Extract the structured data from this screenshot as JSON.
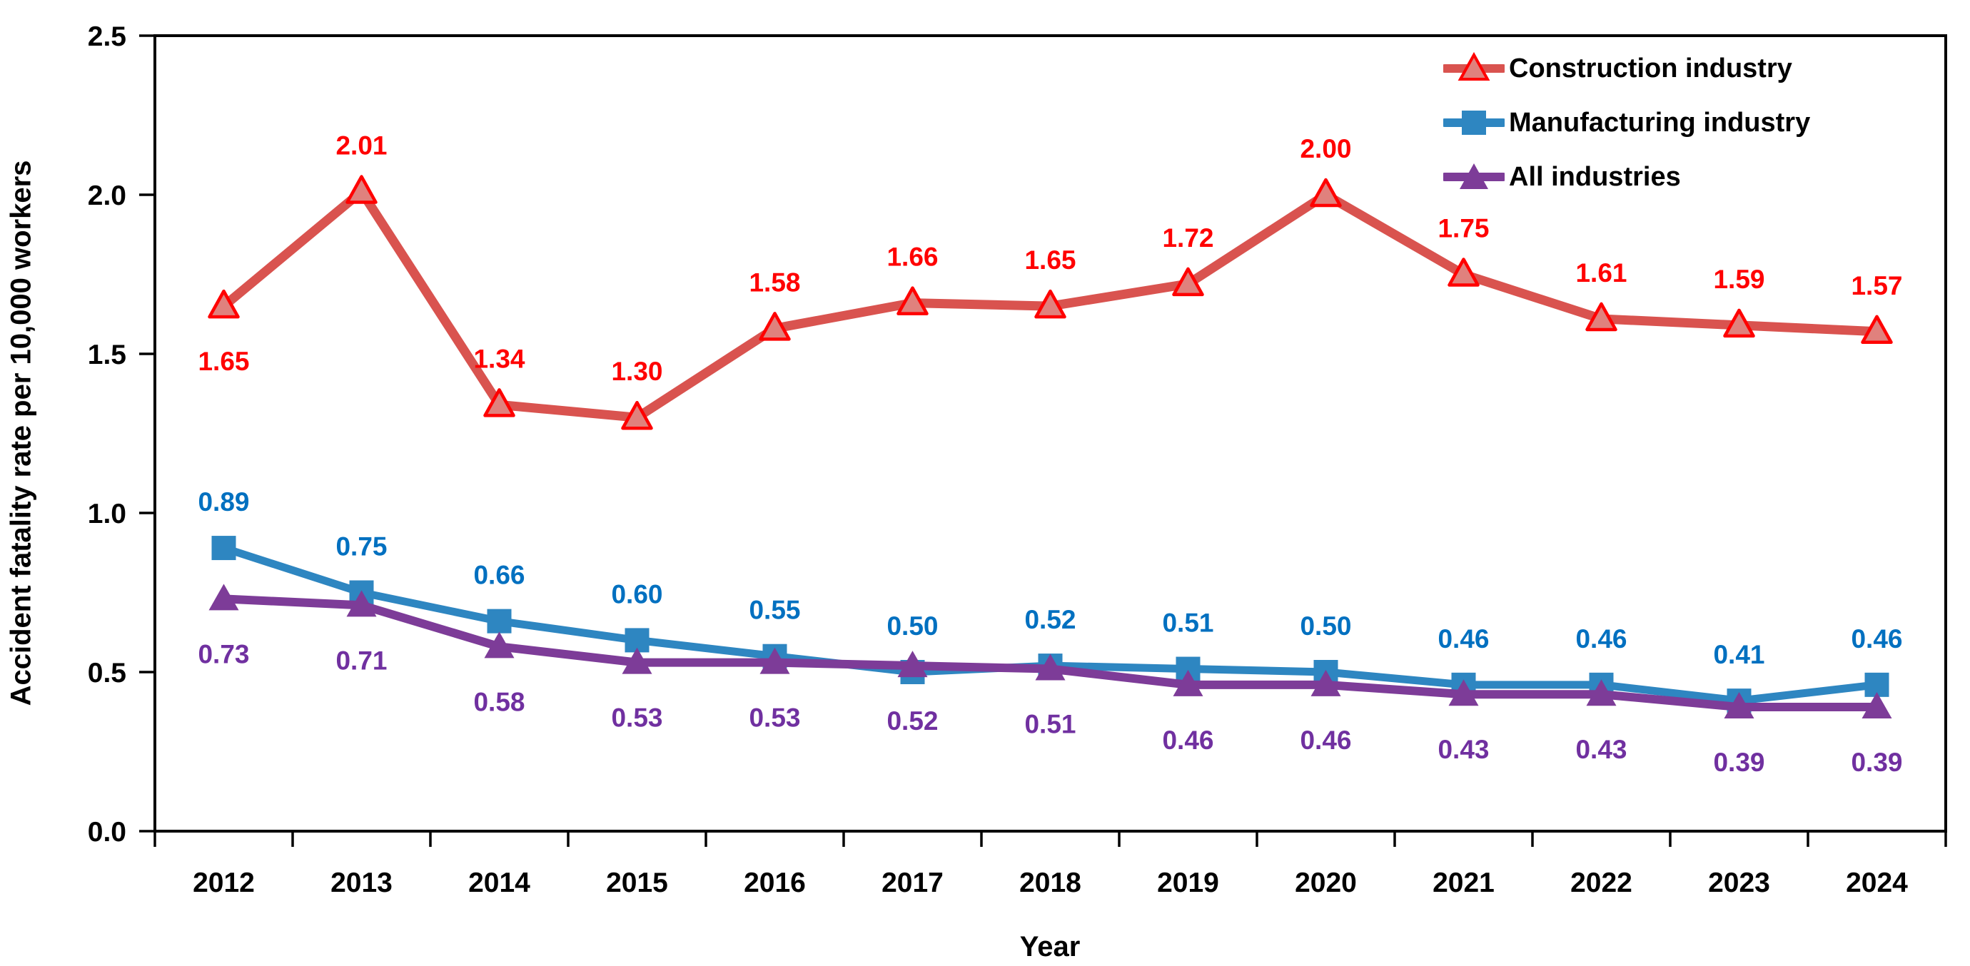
{
  "chart_data": {
    "type": "line",
    "title": "",
    "xlabel": "Year",
    "ylabel": "Accident fatality rate per 10,000 workers",
    "ylim": [
      0.0,
      2.5
    ],
    "grid": false,
    "legend_position": "top-right-inside",
    "background_color": "#ffffff",
    "axis_color": "#000000",
    "yticks": [
      {
        "value": 0.0,
        "label": "0.0"
      },
      {
        "value": 0.5,
        "label": "0.5"
      },
      {
        "value": 1.0,
        "label": "1.0"
      },
      {
        "value": 1.5,
        "label": "1.5"
      },
      {
        "value": 2.0,
        "label": "2.0"
      },
      {
        "value": 2.5,
        "label": "2.5"
      }
    ],
    "categories": [
      "2012",
      "2013",
      "2014",
      "2015",
      "2016",
      "2017",
      "2018",
      "2019",
      "2020",
      "2021",
      "2022",
      "2023",
      "2024"
    ],
    "series": [
      {
        "name": "Construction industry",
        "values": [
          1.65,
          2.01,
          1.34,
          1.3,
          1.58,
          1.66,
          1.65,
          1.72,
          2.0,
          1.75,
          1.61,
          1.59,
          1.57
        ],
        "labels": [
          "1.65",
          "2.01",
          "1.34",
          "1.30",
          "1.58",
          "1.66",
          "1.65",
          "1.72",
          "2.00",
          "1.75",
          "1.61",
          "1.59",
          "1.57"
        ],
        "line_color": "#D9534F",
        "line_width": 13,
        "marker": "triangle-open",
        "marker_fill": "#E0817D",
        "marker_stroke": "#FF0000",
        "label_color": "#FF0000",
        "label_side": "above",
        "label_side_overrides": {
          "0": "below"
        }
      },
      {
        "name": "Manufacturing industry",
        "values": [
          0.89,
          0.75,
          0.66,
          0.6,
          0.55,
          0.5,
          0.52,
          0.51,
          0.5,
          0.46,
          0.46,
          0.41,
          0.46
        ],
        "labels": [
          "0.89",
          "0.75",
          "0.66",
          "0.60",
          "0.55",
          "0.50",
          "0.52",
          "0.51",
          "0.50",
          "0.46",
          "0.46",
          "0.41",
          "0.46"
        ],
        "line_color": "#2E86C1",
        "line_width": 11,
        "marker": "square",
        "marker_fill": "#2E86C1",
        "marker_stroke": "#2E86C1",
        "label_color": "#0070C0",
        "label_side": "above",
        "label_side_overrides": {}
      },
      {
        "name": "All industries",
        "values": [
          0.73,
          0.71,
          0.58,
          0.53,
          0.53,
          0.52,
          0.51,
          0.46,
          0.46,
          0.43,
          0.43,
          0.39,
          0.39
        ],
        "labels": [
          "0.73",
          "0.71",
          "0.58",
          "0.53",
          "0.53",
          "0.52",
          "0.51",
          "0.46",
          "0.46",
          "0.43",
          "0.43",
          "0.39",
          "0.39"
        ],
        "line_color": "#7D3C98",
        "line_width": 12,
        "marker": "triangle",
        "marker_fill": "#7D3C98",
        "marker_stroke": "#7D3C98",
        "label_color": "#7030A0",
        "label_side": "below",
        "label_side_overrides": {}
      }
    ]
  }
}
